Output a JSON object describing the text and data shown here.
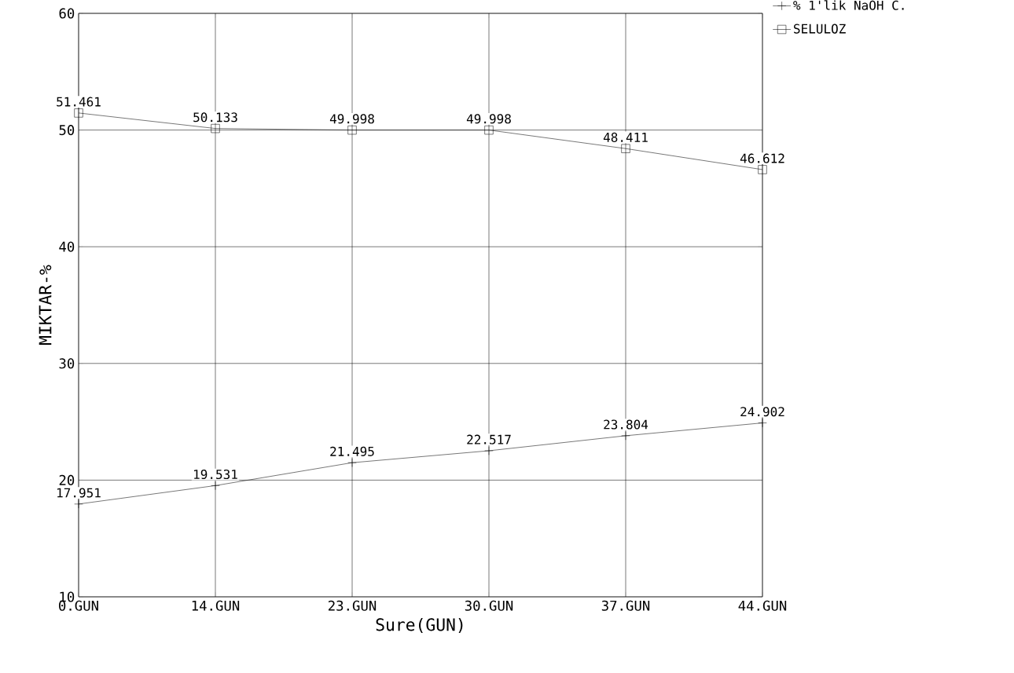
{
  "chart_data": {
    "type": "line",
    "xlabel": "Sure(GUN)",
    "ylabel": "MIKTAR-%",
    "categories": [
      "0.GUN",
      "14.GUN",
      "23.GUN",
      "30.GUN",
      "37.GUN",
      "44.GUN"
    ],
    "series": [
      {
        "name": "% 1'lik NaOH C.",
        "color": "#000000",
        "marker": "cross",
        "values": [
          17.951,
          19.531,
          21.495,
          22.517,
          23.804,
          24.902
        ],
        "value_labels": [
          "17.951",
          "19.531",
          "21.495",
          "22.517",
          "23.804",
          "24.902"
        ]
      },
      {
        "name": "SELULOZ",
        "color": "#000000",
        "marker": "square",
        "values": [
          51.461,
          50.133,
          49.998,
          49.998,
          48.411,
          46.612
        ],
        "value_labels": [
          "51.461",
          "50.133",
          "49.998",
          "49.998",
          "48.411",
          "46.612"
        ]
      }
    ],
    "ylim": [
      10,
      60
    ],
    "yticks": [
      10,
      20,
      30,
      40,
      50,
      60
    ],
    "grid": true,
    "legend": "top right",
    "line_style": "solid"
  }
}
